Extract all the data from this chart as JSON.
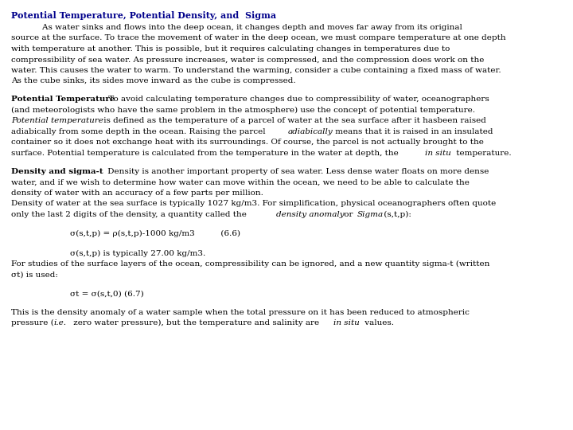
{
  "title": "Potential Temperature, Potential Density, and  Sigma",
  "title_color": "#00008B",
  "bg": "#FFFFFF",
  "tc": "#000000",
  "fs": 7.5,
  "figsize": [
    7.2,
    5.4
  ],
  "dpi": 100
}
